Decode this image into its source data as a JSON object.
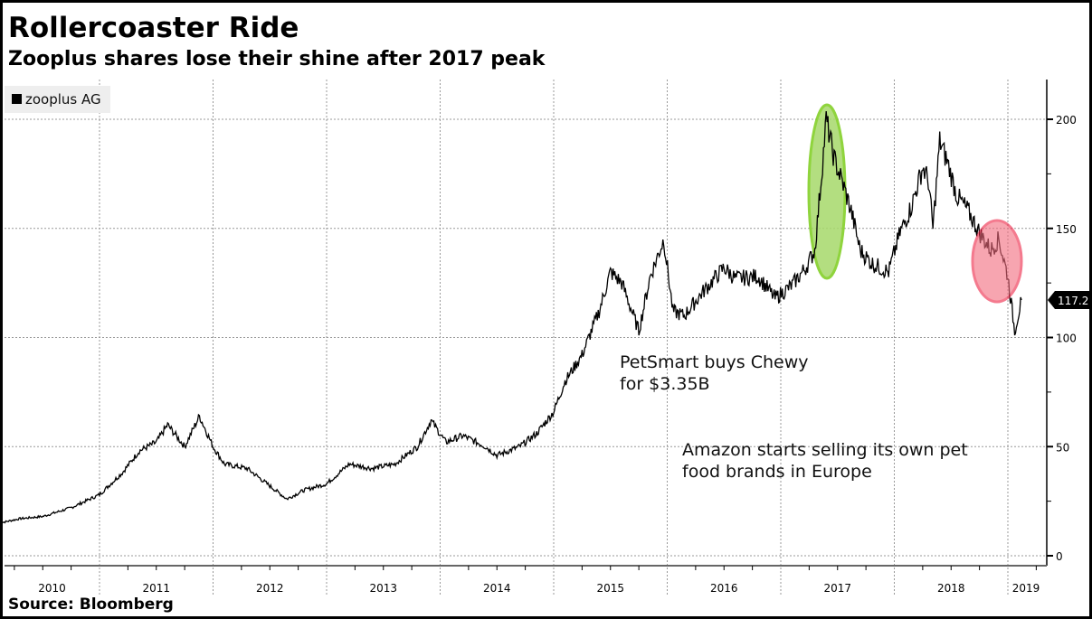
{
  "chart_data": {
    "type": "line",
    "title": "Rollercoaster Ride",
    "subtitle": "Zooplus shares lose their shine after 2017 peak",
    "source": "Source: Bloomberg",
    "legend": [
      {
        "name": "zooplus AG",
        "color": "#000000"
      }
    ],
    "legend_placement": "top-left",
    "ylim": [
      0,
      215
    ],
    "yticks": [
      0,
      50,
      100,
      150,
      200
    ],
    "xlim": [
      2010.1,
      2019.2
    ],
    "xtick_labels": [
      "2010",
      "2011",
      "2012",
      "2013",
      "2014",
      "2015",
      "2016",
      "2017",
      "2018",
      "2019"
    ],
    "last_value_label": "117.20",
    "grid": true,
    "series": [
      {
        "name": "zooplus AG",
        "x": [
          2010.12,
          2010.3,
          2010.5,
          2010.75,
          2011.0,
          2011.2,
          2011.35,
          2011.5,
          2011.6,
          2011.75,
          2011.88,
          2012.0,
          2012.1,
          2012.3,
          2012.5,
          2012.65,
          2012.8,
          2013.0,
          2013.2,
          2013.4,
          2013.6,
          2013.8,
          2013.92,
          2014.05,
          2014.2,
          2014.4,
          2014.5,
          2014.7,
          2014.85,
          2015.0,
          2015.1,
          2015.25,
          2015.4,
          2015.5,
          2015.6,
          2015.75,
          2015.85,
          2015.97,
          2016.05,
          2016.15,
          2016.3,
          2016.5,
          2016.6,
          2016.8,
          2016.95,
          2017.1,
          2017.22,
          2017.3,
          2017.36,
          2017.4,
          2017.47,
          2017.55,
          2017.62,
          2017.7,
          2017.8,
          2017.95,
          2018.05,
          2018.15,
          2018.25,
          2018.3,
          2018.34,
          2018.4,
          2018.47,
          2018.55,
          2018.65,
          2018.75,
          2018.85,
          2018.92,
          2019.0,
          2019.06,
          2019.12
        ],
        "y": [
          15,
          17,
          18,
          22,
          28,
          38,
          48,
          52,
          60,
          50,
          64,
          50,
          42,
          40,
          32,
          26,
          30,
          33,
          42,
          40,
          42,
          50,
          62,
          52,
          55,
          50,
          46,
          50,
          56,
          66,
          80,
          92,
          112,
          130,
          125,
          103,
          128,
          145,
          112,
          110,
          120,
          132,
          127,
          128,
          118,
          124,
          132,
          140,
          175,
          200,
          182,
          170,
          158,
          140,
          134,
          130,
          148,
          160,
          178,
          172,
          150,
          190,
          180,
          165,
          158,
          148,
          140,
          145,
          128,
          103,
          117.2
        ]
      }
    ],
    "annotations": [
      "PetSmart buys Chewy",
      "for $3.35B",
      "Amazon starts selling its own pet",
      "food brands in Europe"
    ]
  }
}
